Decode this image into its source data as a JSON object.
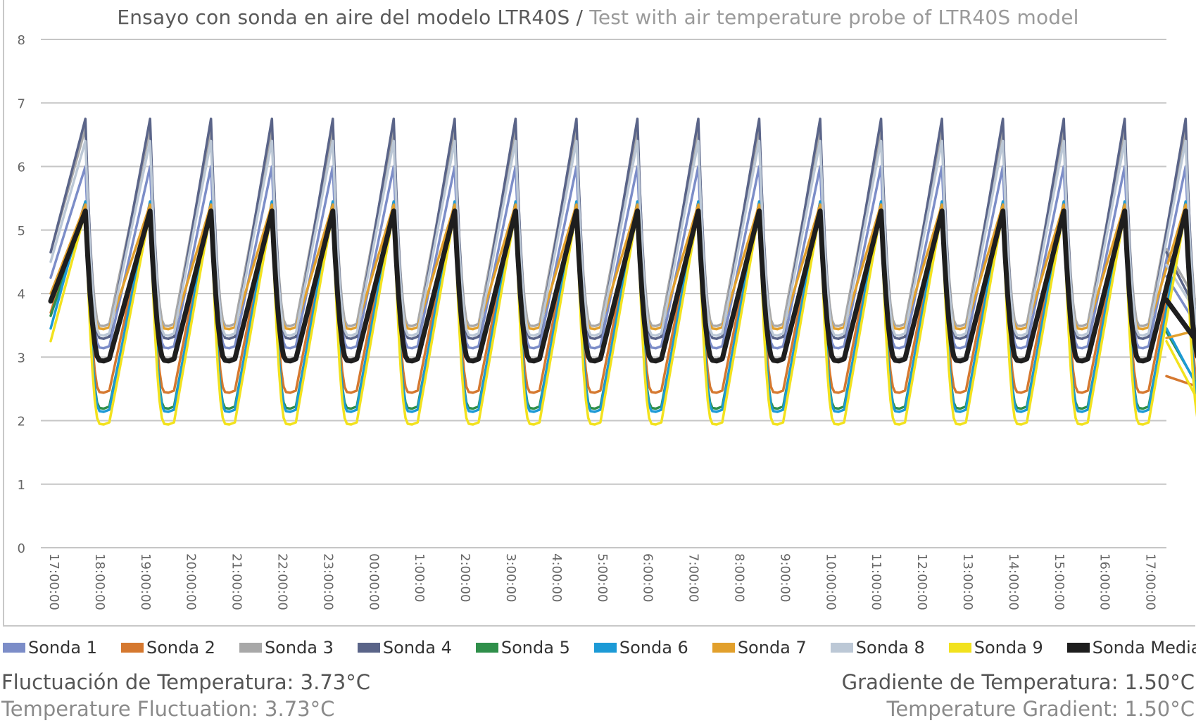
{
  "title": {
    "main": "Ensayo con sonda en aire del modelo LTR40S",
    "separator": " / ",
    "sub": "Test with air temperature probe of LTR40S model"
  },
  "chart_data": {
    "type": "line",
    "title": "Ensayo con sonda en aire del modelo LTR40S / Test with air temperature probe of LTR40S model",
    "xlabel": "",
    "ylabel": "",
    "ylim": [
      0,
      8
    ],
    "yticks": [
      "0",
      "1",
      "2",
      "3",
      "4",
      "5",
      "6",
      "7",
      "8"
    ],
    "x_ticks": [
      "17:00:00",
      "18:00:00",
      "19:00:00",
      "20:00:00",
      "21:00:00",
      "22:00:00",
      "23:00:00",
      "00:00:00",
      "1:00:00",
      "2:00:00",
      "3:00:00",
      "4:00:00",
      "5:00:00",
      "6:00:00",
      "7:00:00",
      "8:00:00",
      "9:00:00",
      "10:00:00",
      "11:00:00",
      "12:00:00",
      "13:00:00",
      "14:00:00",
      "15:00:00",
      "16:00:00",
      "17:00:00"
    ],
    "x_start": "17:00:00",
    "x_end": "17:35:00 (next day)",
    "cycle_peaks": [
      "17:40",
      "19:05",
      "20:25",
      "21:45",
      "23:05",
      "00:25",
      "1:45",
      "3:05",
      "4:25",
      "5:45",
      "7:05",
      "8:25",
      "9:45",
      "11:05",
      "12:25",
      "13:45",
      "15:05",
      "16:25",
      "17:45"
    ],
    "grid": true,
    "legend_position": "bottom",
    "series": [
      {
        "name": "Sonda 1",
        "color": "#7c8dc8",
        "start": 4.25,
        "peak": 6.0,
        "trough": 3.15,
        "end": 4.27
      },
      {
        "name": "Sonda 2",
        "color": "#d5782f",
        "start": 3.7,
        "peak": 5.45,
        "trough": 2.45,
        "end": 2.7
      },
      {
        "name": "Sonda 3",
        "color": "#a8a8a8",
        "start": 4.65,
        "peak": 6.6,
        "trough": 3.5,
        "end": 4.7
      },
      {
        "name": "Sonda 4",
        "color": "#5a6488",
        "start": 4.65,
        "peak": 6.75,
        "trough": 3.3,
        "end": 4.65
      },
      {
        "name": "Sonda 5",
        "color": "#2f8f4a",
        "start": 3.65,
        "peak": 5.3,
        "trough": 2.2,
        "end": 3.4
      },
      {
        "name": "Sonda 6",
        "color": "#1c9ad6",
        "start": 3.45,
        "peak": 5.45,
        "trough": 2.15,
        "end": 3.45
      },
      {
        "name": "Sonda 7",
        "color": "#e2a02c",
        "start": 4.0,
        "peak": 5.4,
        "trough": 3.45,
        "end": 3.3
      },
      {
        "name": "Sonda 8",
        "color": "#bcc8d6",
        "start": 4.5,
        "peak": 6.4,
        "trough": 3.35,
        "end": 4.45
      },
      {
        "name": "Sonda 9",
        "color": "#f2e21e",
        "start": 3.25,
        "peak": 5.3,
        "trough": 1.95,
        "end": 3.25
      },
      {
        "name": "Sonda Media",
        "color": "#1e1e1e",
        "start": 3.88,
        "peak": 5.3,
        "trough": 2.95,
        "end": 3.9
      }
    ]
  },
  "footer": {
    "fluct_es": "Fluctuación de Temperatura: 3.73°C",
    "fluct_en": "Temperature Fluctuation: 3.73°C",
    "grad_es": "Gradiente de Temperatura: 1.50°C",
    "grad_en": "Temperature Gradient: 1.50°C"
  }
}
